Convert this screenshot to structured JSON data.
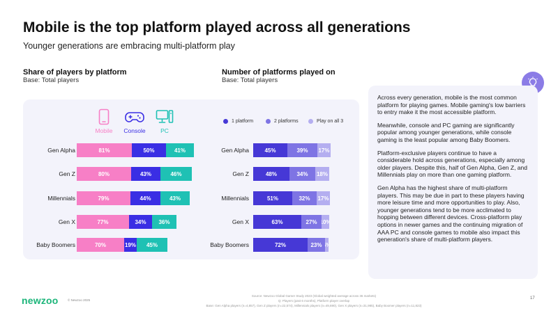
{
  "title": "Mobile is the top platform played across all generations",
  "subtitle": "Younger generations are embracing multi-platform play",
  "chart_data": [
    {
      "type": "bar",
      "title": "Share of players by platform",
      "subtitle": "Base: Total players",
      "categories": [
        "Gen Alpha",
        "Gen Z",
        "Millennials",
        "Gen X",
        "Baby Boomers"
      ],
      "series": [
        {
          "name": "Mobile",
          "values": [
            81,
            80,
            79,
            77,
            70
          ],
          "color": "#f77fc6",
          "icon": "mobile-phone-icon"
        },
        {
          "name": "Console",
          "values": [
            50,
            43,
            44,
            34,
            19
          ],
          "color": "#3a2ee4",
          "icon": "gamepad-icon"
        },
        {
          "name": "PC",
          "values": [
            41,
            46,
            43,
            36,
            45
          ],
          "color": "#1fc1b4",
          "icon": "desktop-pc-icon"
        }
      ]
    },
    {
      "type": "bar",
      "title": "Number of platforms played on",
      "subtitle": "Base: Total players",
      "categories": [
        "Gen Alpha",
        "Gen Z",
        "Millennials",
        "Gen X",
        "Baby Boomers"
      ],
      "series": [
        {
          "name": "1 platform",
          "values": [
            45,
            48,
            51,
            63,
            72
          ],
          "color": "#4638d6"
        },
        {
          "name": "2 platforms",
          "values": [
            39,
            34,
            32,
            27,
            23
          ],
          "color": "#7e74e4"
        },
        {
          "name": "Play on all 3",
          "values": [
            17,
            18,
            17,
            10,
            5
          ],
          "color": "#b4aef0"
        }
      ]
    }
  ],
  "insight": {
    "icon": "lightbulb-icon",
    "paragraphs": [
      "Across every generation, mobile is the most common platform for playing games. Mobile gaming's low barriers to entry make it the most accessible platform.",
      "Meanwhile, console and PC gaming are significantly popular among younger generations, while console gaming is the least popular among Baby Boomers.",
      "Platform-exclusive players continue to have a considerable hold across generations, especially among older players. Despite this, half of Gen Alpha, Gen Z, and Millennials play on more than one gaming platform.",
      "Gen Alpha has the highest share of multi-platform players. This may be due in part to these players having more leisure time and more opportunities to play. Also, younger generations tend to be more acclimated to hopping between different devices. Cross-platform play options in newer games and the continuing migration of AAA PC and console games to mobile also impact this generation's share of multi-platform players."
    ]
  },
  "footer": {
    "logo": "newzoo",
    "copyright": "© Newzoo 2025",
    "source_lines": [
      "Source: Newzoo Global Gamer Study 2023 (Global weighted average across 36 markets)",
      "Q: Players (past 6 months), Platform player overlap",
      "Base: Gen Alpha players (n=4,857), Gen Z players (n=22,574), Millennials players (n=49,690), Gen X players (n=31,985), Baby Boomer players (n=11,823)"
    ],
    "page": "17"
  }
}
